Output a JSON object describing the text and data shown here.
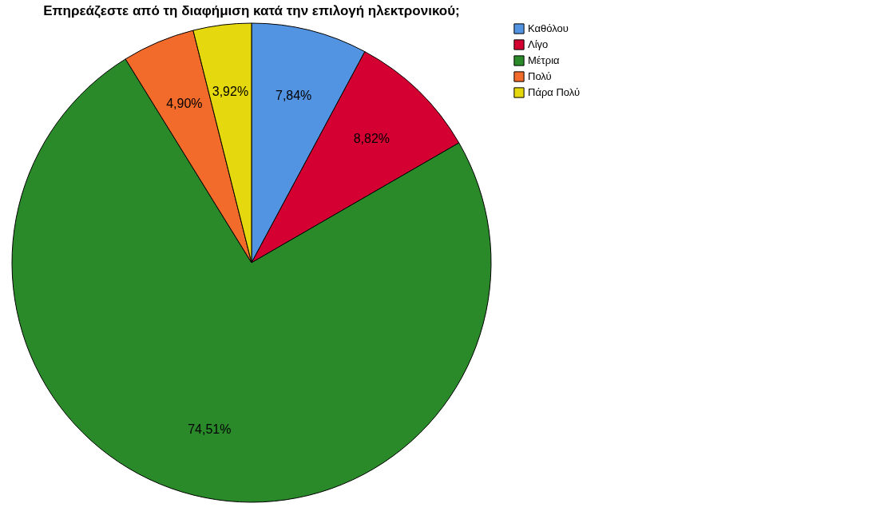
{
  "chart_data": {
    "type": "pie",
    "title": "Επηρεάζεστε από τη διαφήμιση κατά την επιλογή ηλεκτρονικού;",
    "categories": [
      "Καθόλου",
      "Λίγο",
      "Μέτρια",
      "Πολύ",
      "Πάρα Πολύ"
    ],
    "values": [
      7.84,
      8.82,
      74.51,
      4.9,
      3.92
    ],
    "value_labels": [
      "7,84%",
      "8,82%",
      "74,51%",
      "4,90%",
      "3,92%"
    ],
    "colors": [
      "#5294e2",
      "#d50032",
      "#2a8a2a",
      "#f26b2a",
      "#e5d80e"
    ],
    "legend": "top right"
  }
}
